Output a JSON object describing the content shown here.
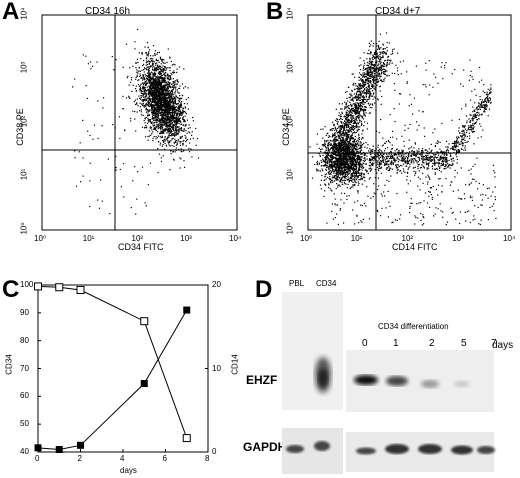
{
  "panelA": {
    "letter": "A",
    "title": "CD34  16h",
    "xlabel": "CD34 FITC",
    "ylabel": "CD38 PE",
    "ticks": [
      "10⁰",
      "10¹",
      "10²",
      "10³",
      "10⁴"
    ]
  },
  "panelB": {
    "letter": "B",
    "title": "CD34 d+7",
    "xlabel": "CD14 FITC",
    "ylabel": "CD34 PE",
    "ticks": [
      "10⁰",
      "10¹",
      "10²",
      "10³",
      "10⁴"
    ]
  },
  "panelC": {
    "letter": "C",
    "ylabel_left": "CD34",
    "ylabel_right": "CD14",
    "xlabel": "days",
    "left_ticks": [
      "100",
      "90",
      "80",
      "70",
      "60",
      "50",
      "40"
    ],
    "right_ticks": [
      "20",
      "10",
      "0"
    ],
    "x_ticks": [
      "0",
      "2",
      "4",
      "6",
      "8"
    ]
  },
  "panelD": {
    "letter": "D",
    "lane_pbl": "PBL",
    "lane_cd34": "CD34",
    "diff_title": "CD34 differentiation",
    "days_label": "days",
    "day_labels": [
      "0",
      "1",
      "2",
      "5",
      "7"
    ],
    "row1": "EHZF",
    "row2": "GAPDH"
  },
  "chart_data": [
    {
      "type": "scatter",
      "title": "CD34  16h",
      "xlabel": "CD34 FITC",
      "ylabel": "CD38 PE",
      "xscale": "log",
      "yscale": "log",
      "xlim": [
        1,
        10000
      ],
      "ylim": [
        1,
        10000
      ],
      "quadrant_gate": {
        "x": 30,
        "y": 30
      },
      "populations": [
        {
          "center": [
            300,
            250
          ],
          "spread": "dense cluster, roughly 100-800 on x, 30-1500 on y"
        }
      ]
    },
    {
      "type": "scatter",
      "title": "CD34 d+7",
      "xlabel": "CD14 FITC",
      "ylabel": "CD34 PE",
      "xscale": "log",
      "yscale": "log",
      "xlim": [
        1,
        10000
      ],
      "ylim": [
        1,
        10000
      ],
      "quadrant_gate": {
        "x": 25,
        "y": 30
      },
      "populations": [
        {
          "center": [
            5,
            20
          ],
          "spread": "dense cluster at low CD14 / low CD34"
        },
        {
          "center": [
            8,
            300
          ],
          "spread": "diagonal arm up to ~2000 on y"
        },
        {
          "center": [
            800,
            40
          ],
          "spread": "tail toward high CD14, rising to ~400 at 4000"
        }
      ]
    },
    {
      "type": "line",
      "xlabel": "days",
      "ylabel": "CD34",
      "y2label": "CD14",
      "xlim": [
        0,
        8
      ],
      "ylim": [
        40,
        100
      ],
      "y2lim": [
        0,
        20
      ],
      "series": [
        {
          "name": "CD34",
          "axis": "left",
          "marker": "open-square",
          "x": [
            0,
            1,
            2,
            5,
            7
          ],
          "y": [
            99.5,
            99.2,
            98.2,
            87,
            45
          ]
        },
        {
          "name": "CD14",
          "axis": "right",
          "marker": "filled-square",
          "x": [
            0,
            1,
            2,
            5,
            7
          ],
          "y": [
            0.5,
            0.3,
            0.8,
            8.2,
            17
          ]
        }
      ]
    }
  ]
}
